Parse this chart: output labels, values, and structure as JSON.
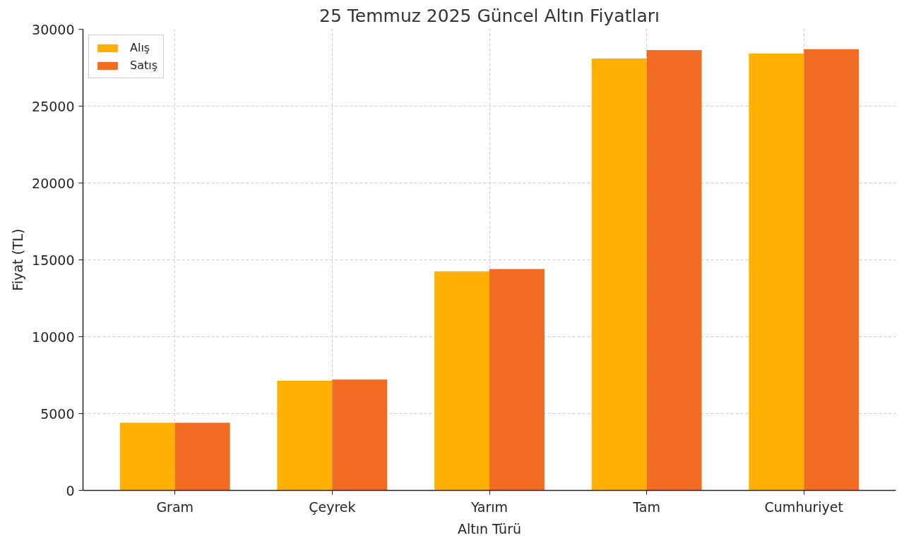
{
  "chart_data": {
    "type": "bar",
    "title": "25 Temmuz 2025 Güncel Altın Fiyatları",
    "xlabel": "Altın Türü",
    "ylabel": "Fiyat (TL)",
    "categories": [
      "Gram",
      "Çeyrek",
      "Yarım",
      "Tam",
      "Cumhuriyet"
    ],
    "series": [
      {
        "name": "Alış",
        "color": "#ffb000",
        "values": [
          4400,
          7130,
          14250,
          28100,
          28430
        ]
      },
      {
        "name": "Satış",
        "color": "#f26b22",
        "values": [
          4400,
          7210,
          14400,
          28650,
          28700
        ]
      }
    ],
    "ylim": [
      0,
      30000
    ],
    "yticks": [
      0,
      5000,
      10000,
      15000,
      20000,
      25000,
      30000
    ],
    "grid": true,
    "legend": "top left"
  }
}
